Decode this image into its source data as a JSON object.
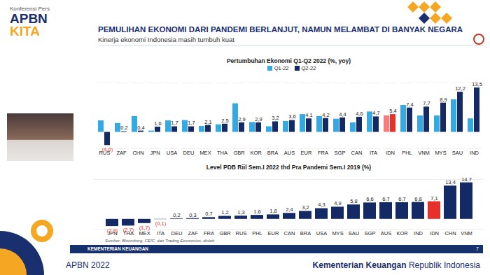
{
  "header": {
    "badge": "Konferensi Pers",
    "logo": [
      "APBN",
      "KITA"
    ],
    "title": "PEMULIHAN EKONOMI DARI PANDEMI BERLANJUT, NAMUN MELAMBAT DI BANYAK NEGARA",
    "subtitle": "Kinerja ekonomi Indonesia masih tumbuh kuat"
  },
  "chart_data": [
    {
      "type": "bar",
      "title": "Pertumbuhan Ekonomi Q1-Q2 2022 (%, yoy)",
      "categories": [
        "RUS",
        "ZAF",
        "CHN",
        "JPN",
        "USA",
        "DEU",
        "MEX",
        "THA",
        "GBR",
        "KOR",
        "BRA",
        "AUS",
        "EUR",
        "FRA",
        "SGP",
        "CAN",
        "ITA",
        "IDN",
        "PHL",
        "VNM",
        "MYS",
        "SAU",
        "IND"
      ],
      "series": [
        {
          "name": "Q1-22",
          "color": "#35a9e1",
          "colors": [
            "#35a9e1",
            "#35a9e1",
            "#35a9e1",
            "#35a9e1",
            "#35a9e1",
            "#35a9e1",
            "#35a9e1",
            "#35a9e1",
            "#35a9e1",
            "#35a9e1",
            "#35a9e1",
            "#35a9e1",
            "#35a9e1",
            "#35a9e1",
            "#35a9e1",
            "#35a9e1",
            "#35a9e1",
            "#f47c7c",
            "#35a9e1",
            "#35a9e1",
            "#35a9e1",
            "#35a9e1",
            "#35a9e1"
          ],
          "values": [
            3.5,
            2.7,
            4.8,
            0.4,
            3.5,
            3.6,
            1.8,
            2.3,
            8.7,
            3.0,
            1.7,
            3.3,
            5.4,
            4.8,
            4.0,
            2.9,
            6.2,
            5.0,
            8.2,
            5.0,
            5.0,
            9.9,
            4.1
          ]
        },
        {
          "name": "Q2-22",
          "color": "#142a66",
          "colors": [
            "#142a66",
            "#142a66",
            "#142a66",
            "#142a66",
            "#142a66",
            "#142a66",
            "#142a66",
            "#142a66",
            "#142a66",
            "#142a66",
            "#142a66",
            "#142a66",
            "#142a66",
            "#142a66",
            "#142a66",
            "#142a66",
            "#142a66",
            "#e8302a",
            "#142a66",
            "#142a66",
            "#142a66",
            "#142a66",
            "#142a66"
          ],
          "values": [
            -4.0,
            0.2,
            0.4,
            1.6,
            1.7,
            1.7,
            2.1,
            2.5,
            2.9,
            2.9,
            3.2,
            3.6,
            4.1,
            4.2,
            4.4,
            4.6,
            4.7,
            5.4,
            7.4,
            7.7,
            8.9,
            12.2,
            13.5
          ],
          "value_labels": [
            "(4,0)",
            "0,2",
            "0,4",
            "1,6",
            "1,7",
            "1,7",
            "2,1",
            "2,5",
            "2,9",
            "2,9",
            "3,2",
            "3,6",
            "4,1",
            "4,2",
            "4,4",
            "4,6",
            "4,7",
            "5,4",
            "7,4",
            "7,7",
            "8,9",
            "12,2",
            "13,5"
          ]
        }
      ],
      "ylim": [
        -5,
        15
      ],
      "data_labels": true,
      "tick_labels": "x",
      "legend": "top"
    },
    {
      "type": "bar",
      "title": "Level PDB Riil Sem.I 2022 thd Pra Pandemi Sem.I 2019  (%)",
      "categories": [
        "JPN",
        "THA",
        "MEX",
        "ITA",
        "DEU",
        "ZAF",
        "FRA",
        "GBR",
        "RUS",
        "PHL",
        "EUR",
        "CAN",
        "BRA",
        "USA",
        "MYS",
        "SAU",
        "SGP",
        "AUS",
        "KOR",
        "IND",
        "IDN",
        "CHN",
        "VNM"
      ],
      "values": [
        -2.9,
        -2.7,
        -1.7,
        -0.1,
        0.2,
        0.3,
        0.7,
        1.2,
        1.3,
        1.6,
        1.8,
        2.4,
        3.2,
        4.3,
        4.9,
        5.8,
        6.6,
        6.7,
        6.7,
        6.8,
        7.1,
        13.4,
        14.7
      ],
      "value_labels": [
        "(2,9)",
        "(2,7)",
        "(1,7)",
        "(0,1)",
        "0,2",
        "0,3",
        "0,7",
        "1,2",
        "1,3",
        "1,6",
        "1,8",
        "2,4",
        "3,2",
        "4,3",
        "4,9",
        "5,8",
        "6,6",
        "6,7",
        "6,7",
        "6,8",
        "7,1",
        "13,4",
        "14,7"
      ],
      "color": "#142a66",
      "colors": [
        "#142a66",
        "#142a66",
        "#142a66",
        "#142a66",
        "#142a66",
        "#142a66",
        "#142a66",
        "#142a66",
        "#142a66",
        "#142a66",
        "#142a66",
        "#142a66",
        "#142a66",
        "#142a66",
        "#142a66",
        "#142a66",
        "#142a66",
        "#142a66",
        "#142a66",
        "#142a66",
        "#e8302a",
        "#142a66",
        "#142a66"
      ],
      "ylim": [
        -4,
        16
      ],
      "data_labels": true,
      "tick_labels": "x"
    }
  ],
  "source": "Sumber: Bloomberg, CEIC, dan Trading Economics, diolah",
  "footer": {
    "ministry": "KEMENTERIAN KEUANGAN",
    "page": "7",
    "left": "APBN 2022",
    "right_bold": "Kementerian Keuangan",
    "right": "Republik Indonesia"
  }
}
